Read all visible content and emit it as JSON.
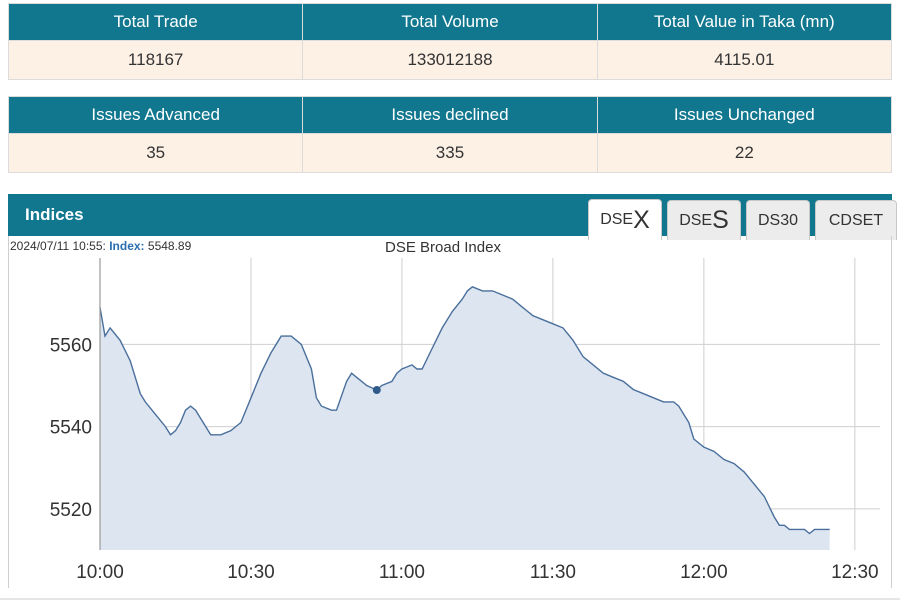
{
  "summary_1": {
    "headers": [
      "Total Trade",
      "Total Volume",
      "Total Value in Taka (mn)"
    ],
    "values": [
      "118167",
      "133012188",
      "4115.01"
    ]
  },
  "summary_2": {
    "headers": [
      "Issues Advanced",
      "Issues declined",
      "Issues Unchanged"
    ],
    "values": [
      "35",
      "335",
      "22"
    ]
  },
  "indices": {
    "title": "Indices",
    "tabs": [
      {
        "prefix": "DSE",
        "suffix": "X",
        "active": true
      },
      {
        "prefix": "DSE",
        "suffix": "S",
        "active": false
      },
      {
        "prefix": "DS30",
        "suffix": "",
        "active": false
      },
      {
        "prefix": "CDSET",
        "suffix": "",
        "active": false
      }
    ],
    "readout": {
      "datetime": "2024/07/11 10:55:",
      "label": "Index:",
      "value": "5548.89"
    }
  },
  "colors": {
    "header": "#11778f",
    "cell_bg": "#fdf1e6",
    "line": "#4a6f9c",
    "fill": "#dde6f0"
  },
  "chart_data": {
    "type": "area",
    "title": "DSE Broad Index",
    "x_ticks": [
      "10:00",
      "10:30",
      "11:00",
      "11:30",
      "12:00",
      "12:30"
    ],
    "y_ticks": [
      5520,
      5540,
      5560
    ],
    "xlim_minutes": [
      0,
      155
    ],
    "ylim": [
      5510,
      5581
    ],
    "grid": true,
    "highlight": {
      "x": 55,
      "y": 5548.89
    },
    "points": [
      [
        0,
        5569
      ],
      [
        1,
        5562
      ],
      [
        2,
        5564
      ],
      [
        4,
        5561
      ],
      [
        6,
        5556
      ],
      [
        8,
        5548
      ],
      [
        9,
        5546
      ],
      [
        11,
        5543
      ],
      [
        13,
        5540
      ],
      [
        14,
        5538
      ],
      [
        15,
        5539
      ],
      [
        16,
        5541
      ],
      [
        17,
        5544
      ],
      [
        18,
        5545
      ],
      [
        19,
        5544
      ],
      [
        21,
        5540
      ],
      [
        22,
        5538
      ],
      [
        24,
        5538
      ],
      [
        26,
        5539
      ],
      [
        28,
        5541
      ],
      [
        30,
        5547
      ],
      [
        32,
        5553
      ],
      [
        34,
        5558
      ],
      [
        36,
        5562
      ],
      [
        38,
        5562
      ],
      [
        40,
        5560
      ],
      [
        42,
        5554
      ],
      [
        43,
        5547
      ],
      [
        44,
        5545
      ],
      [
        46,
        5544
      ],
      [
        47,
        5544
      ],
      [
        49,
        5551
      ],
      [
        50,
        5553
      ],
      [
        51,
        5552
      ],
      [
        53,
        5550
      ],
      [
        55,
        5548.89
      ],
      [
        56,
        5550
      ],
      [
        58,
        5551
      ],
      [
        59,
        5553
      ],
      [
        60,
        5554
      ],
      [
        62,
        5555
      ],
      [
        63,
        5554
      ],
      [
        64,
        5554
      ],
      [
        66,
        5559
      ],
      [
        68,
        5564
      ],
      [
        70,
        5568
      ],
      [
        72,
        5571
      ],
      [
        73,
        5573
      ],
      [
        74,
        5574
      ],
      [
        76,
        5573
      ],
      [
        78,
        5573
      ],
      [
        80,
        5572
      ],
      [
        82,
        5571
      ],
      [
        84,
        5569
      ],
      [
        85,
        5568
      ],
      [
        86,
        5567
      ],
      [
        88,
        5566
      ],
      [
        90,
        5565
      ],
      [
        92,
        5564
      ],
      [
        94,
        5561
      ],
      [
        96,
        5557
      ],
      [
        98,
        5555
      ],
      [
        100,
        5553
      ],
      [
        102,
        5552
      ],
      [
        104,
        5551
      ],
      [
        106,
        5549
      ],
      [
        108,
        5548
      ],
      [
        110,
        5547
      ],
      [
        112,
        5546
      ],
      [
        114,
        5546
      ],
      [
        115,
        5545
      ],
      [
        117,
        5541
      ],
      [
        118,
        5537
      ],
      [
        120,
        5535
      ],
      [
        122,
        5534
      ],
      [
        124,
        5532
      ],
      [
        126,
        5531
      ],
      [
        128,
        5529
      ],
      [
        130,
        5526
      ],
      [
        132,
        5523
      ],
      [
        134,
        5518
      ],
      [
        135,
        5516
      ],
      [
        136,
        5516
      ],
      [
        137,
        5515
      ],
      [
        139,
        5515
      ],
      [
        140,
        5515
      ],
      [
        141,
        5514
      ],
      [
        142,
        5515
      ],
      [
        143,
        5515
      ],
      [
        145,
        5515
      ]
    ]
  }
}
